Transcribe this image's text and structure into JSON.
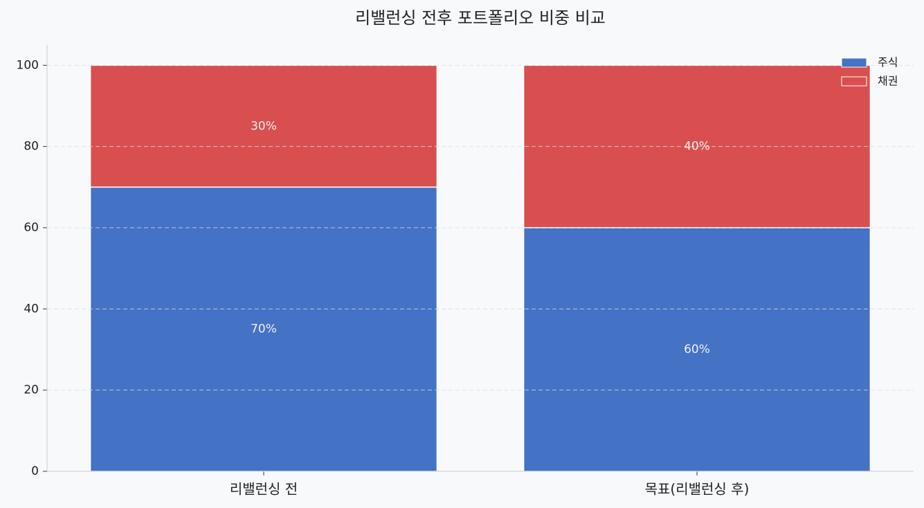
{
  "chart_data": {
    "type": "stacked_bar",
    "title": "리밸런싱 전후 포트폴리오 비중 비교",
    "categories": [
      "리밸런싱 전",
      "목표(리밸런싱 후)"
    ],
    "series": [
      {
        "name": "주식",
        "color": "#4472c4",
        "values": [
          70,
          60
        ],
        "value_labels": [
          "70%",
          "60%"
        ]
      },
      {
        "name": "채권",
        "color": "#d94f4f",
        "values": [
          30,
          40
        ],
        "value_labels": [
          "30%",
          "40%"
        ]
      }
    ],
    "ylim": [
      0,
      105
    ],
    "yticks": [
      0,
      20,
      40,
      60,
      80,
      100
    ],
    "grid": true,
    "legend": "upper right"
  }
}
